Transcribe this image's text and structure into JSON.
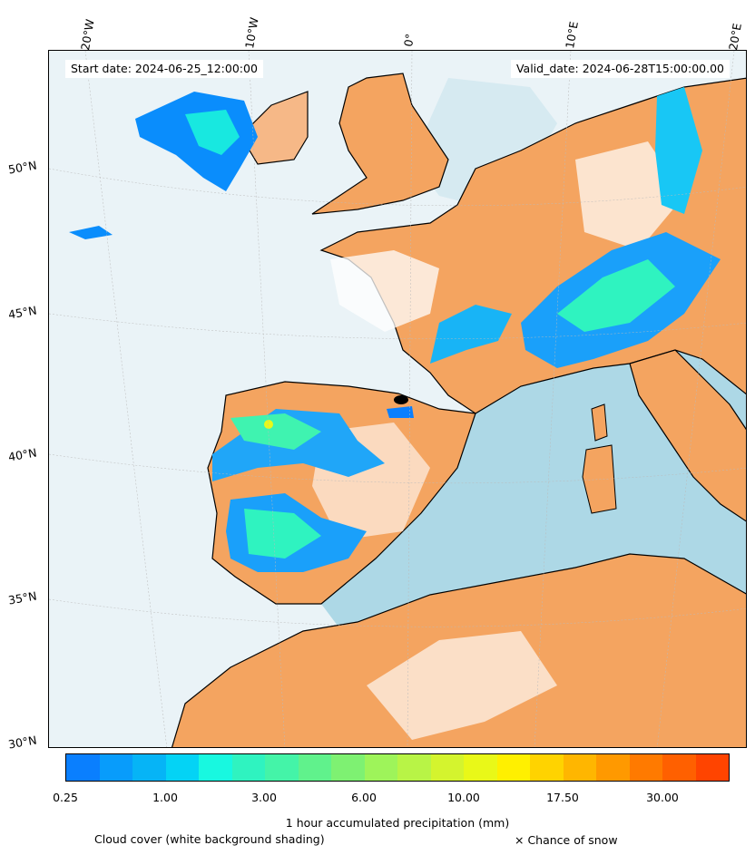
{
  "header": {
    "start_date": "Start date: 2024-06-25_12:00:00",
    "valid_date": "Valid_date: 2024-06-28T15:00:00.00"
  },
  "graticule": {
    "lon_labels": [
      "20°W",
      "10°W",
      "0°",
      "10°E",
      "20°E"
    ],
    "lat_labels": [
      "50°N",
      "45°N",
      "40°N",
      "35°N",
      "30°N"
    ]
  },
  "colors": {
    "sea": "#add8e6",
    "land": "#f4a460",
    "cloud": "#ffffff",
    "coast": "#000000"
  },
  "colorbar": {
    "label": "1 hour accumulated precipitation (mm)",
    "tick_labels": [
      "0.25",
      "1.00",
      "3.00",
      "6.00",
      "10.00",
      "17.50",
      "30.00"
    ],
    "colors": [
      "#0a7ffe",
      "#089cfb",
      "#06b4f6",
      "#04d3f5",
      "#18f8e0",
      "#2ff3c0",
      "#44f4a8",
      "#60f28c",
      "#7ef172",
      "#9ef45a",
      "#b8f446",
      "#d4f42e",
      "#e9f818",
      "#fff000",
      "#ffd300",
      "#ffb600",
      "#ff9900",
      "#ff7a00",
      "#ff6000",
      "#ff4400"
    ]
  },
  "footer": {
    "cloud_note": "Cloud cover (white background shading)",
    "snow_note": "× Chance of snow"
  }
}
